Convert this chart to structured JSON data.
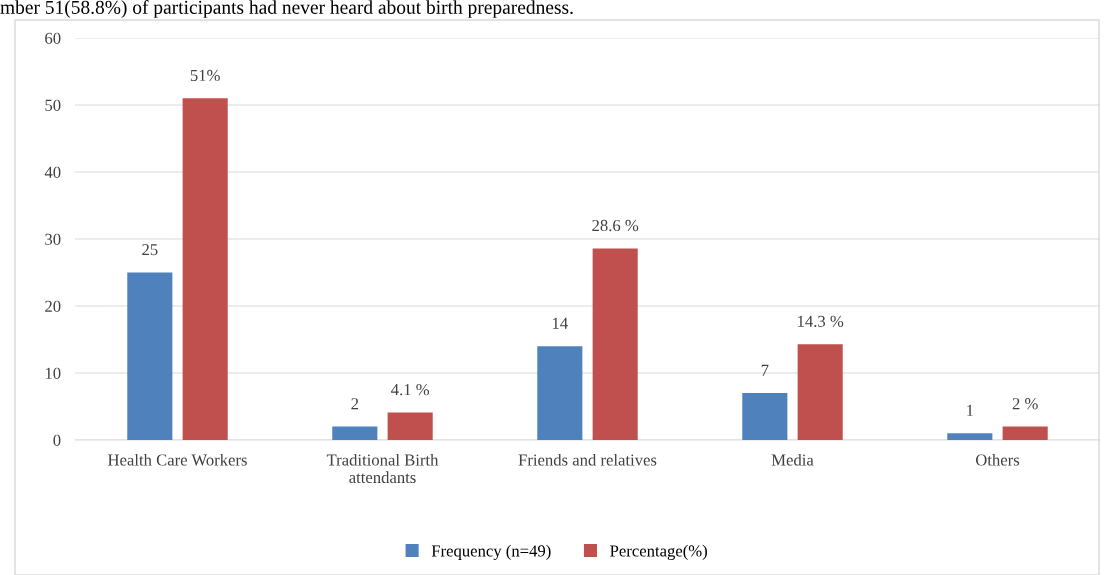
{
  "chart_data": {
    "type": "bar",
    "categories": [
      "Health Care Workers",
      "Traditional Birth\nattendants",
      "Friends and relatives",
      "Media",
      "Others"
    ],
    "series": [
      {
        "name": "Frequency (n=49)",
        "color": "#4f81bd",
        "values": [
          25,
          2,
          14,
          7,
          1
        ],
        "value_labels": [
          "25",
          "2",
          "14",
          "7",
          "1"
        ]
      },
      {
        "name": "Percentage(%)",
        "color": "#c0504d",
        "values": [
          51,
          4.1,
          28.6,
          14.3,
          2
        ],
        "value_labels": [
          "51%",
          "4.1 %",
          "28.6 %",
          "14.3 %",
          "2 %"
        ]
      }
    ],
    "ylim": [
      0,
      60
    ],
    "yticks": [
      0,
      10,
      20,
      30,
      40,
      50,
      60
    ],
    "grid": "y",
    "legend": "bottom",
    "annotations": [
      "mber 51(58.8%) of participants had never heard about birth preparedness."
    ]
  }
}
